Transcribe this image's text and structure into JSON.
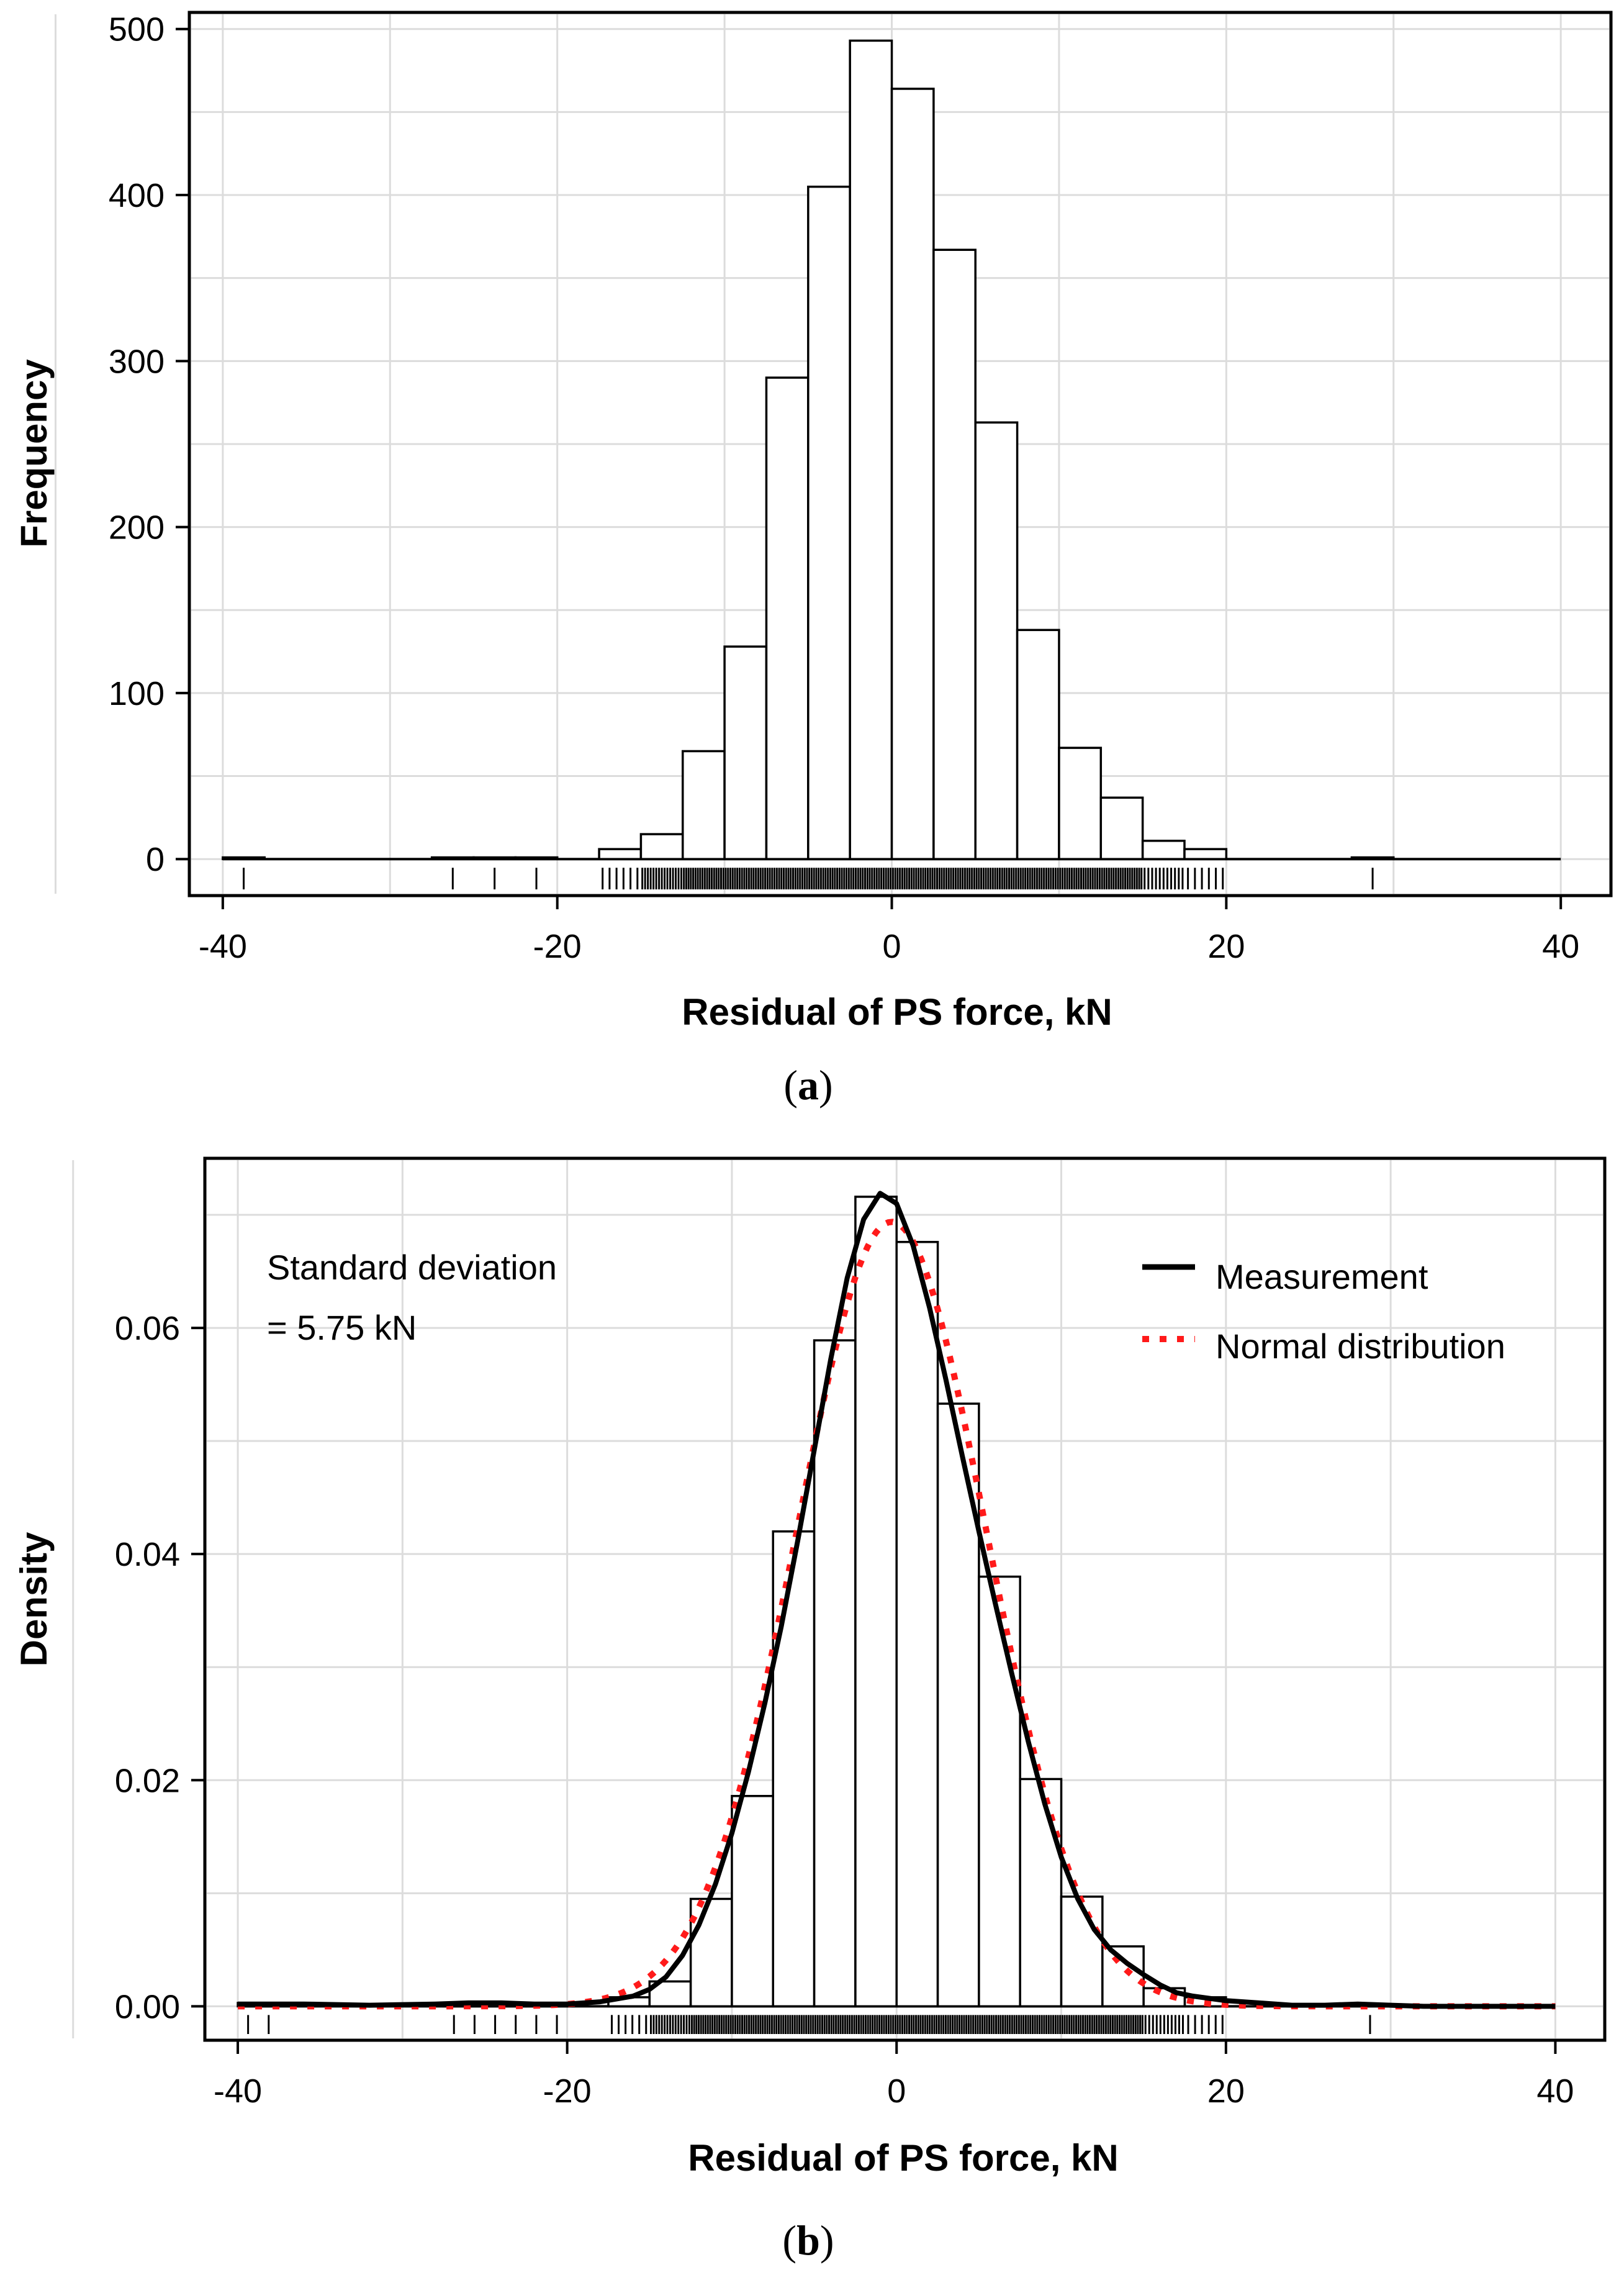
{
  "colors": {
    "bar_fill": "#ffffff",
    "bar_stroke": "#000000",
    "grid": "#dcdcdc",
    "measurement": "#000000",
    "normal": "#ff1a1a"
  },
  "panels": [
    {
      "caption": {
        "open": "(",
        "letter": "a",
        "close": ")"
      },
      "chart_data": {
        "type": "bar",
        "title": "",
        "xlabel": "Residual of PS force, kN",
        "ylabel": "Frequency",
        "xlim": [
          -42,
          43
        ],
        "ylim": [
          -22,
          510
        ],
        "xticks": [
          -40,
          -20,
          0,
          20,
          40
        ],
        "xtick_labels": [
          "-40",
          "-20",
          "0",
          "20",
          "40"
        ],
        "yticks": [
          0,
          100,
          200,
          300,
          400,
          500
        ],
        "ytick_labels": [
          "0",
          "100",
          "200",
          "300",
          "400",
          "500"
        ],
        "bin_width": 2.5,
        "bins": [
          {
            "x0": -40,
            "count": 1
          },
          {
            "x0": -27.5,
            "count": 1
          },
          {
            "x0": -25,
            "count": 1
          },
          {
            "x0": -22.5,
            "count": 1
          },
          {
            "x0": -17.5,
            "count": 6
          },
          {
            "x0": -15,
            "count": 15
          },
          {
            "x0": -12.5,
            "count": 65
          },
          {
            "x0": -10,
            "count": 128
          },
          {
            "x0": -7.5,
            "count": 290
          },
          {
            "x0": -5,
            "count": 405
          },
          {
            "x0": -2.5,
            "count": 493
          },
          {
            "x0": 0,
            "count": 464
          },
          {
            "x0": 2.5,
            "count": 367
          },
          {
            "x0": 5,
            "count": 263
          },
          {
            "x0": 7.5,
            "count": 138
          },
          {
            "x0": 10,
            "count": 67
          },
          {
            "x0": 12.5,
            "count": 37
          },
          {
            "x0": 15,
            "count": 11
          },
          {
            "x0": 17.5,
            "count": 6
          },
          {
            "x0": 27.5,
            "count": 1
          }
        ],
        "baseline_range": [
          -40,
          40
        ]
      }
    },
    {
      "caption": {
        "open": "(",
        "letter": "b",
        "close": ")"
      },
      "annotation": [
        "Standard deviation",
        "= 5.75 kN"
      ],
      "legend": {
        "position": "top-right",
        "entries": [
          {
            "label": "Measurement",
            "style": "solid"
          },
          {
            "label": "Normal distribution",
            "style": "dotted"
          }
        ]
      },
      "chart_data": {
        "type": "bar",
        "title": "",
        "xlabel": "Residual of PS force, kN",
        "ylabel": "Density",
        "xlim": [
          -42,
          43
        ],
        "ylim": [
          -0.003,
          0.075
        ],
        "xticks": [
          -40,
          -20,
          0,
          20,
          40
        ],
        "xtick_labels": [
          "-40",
          "-20",
          "0",
          "20",
          "40"
        ],
        "yticks": [
          0,
          0.02,
          0.04,
          0.06
        ],
        "ytick_labels": [
          "0.00",
          "0.02",
          "0.04",
          "0.06"
        ],
        "bin_width": 2.5,
        "bins": [
          {
            "x0": -40,
            "density": 0.0003
          },
          {
            "x0": -27.5,
            "density": 0.0003
          },
          {
            "x0": -25,
            "density": 0.0003
          },
          {
            "x0": -22.5,
            "density": 0.0003
          },
          {
            "x0": -17.5,
            "density": 0.0008
          },
          {
            "x0": -15,
            "density": 0.0022
          },
          {
            "x0": -12.5,
            "density": 0.0095
          },
          {
            "x0": -10,
            "density": 0.0186
          },
          {
            "x0": -7.5,
            "density": 0.042
          },
          {
            "x0": -5,
            "density": 0.0589
          },
          {
            "x0": -2.5,
            "density": 0.0716
          },
          {
            "x0": 0,
            "density": 0.0676
          },
          {
            "x0": 2.5,
            "density": 0.0533
          },
          {
            "x0": 5,
            "density": 0.038
          },
          {
            "x0": 7.5,
            "density": 0.0201
          },
          {
            "x0": 10,
            "density": 0.0097
          },
          {
            "x0": 12.5,
            "density": 0.0053
          },
          {
            "x0": 15,
            "density": 0.0016
          },
          {
            "x0": 17.5,
            "density": 0.0008
          },
          {
            "x0": 27.5,
            "density": 0.0002
          }
        ],
        "baseline_range": [
          -40,
          40
        ],
        "series": [
          {
            "name": "Measurement",
            "x": [
              -40,
              -36,
              -32,
              -28,
              -26,
              -24,
              -22,
              -20,
              -18,
              -16,
              -15,
              -14,
              -13,
              -12,
              -11,
              -10,
              -9,
              -8,
              -7,
              -6,
              -5,
              -4,
              -3,
              -2,
              -1,
              0,
              1,
              2,
              3,
              4,
              5,
              6,
              7,
              8,
              9,
              10,
              11,
              12,
              13,
              14,
              15,
              16,
              17,
              18,
              19,
              20,
              22,
              24,
              26,
              28,
              30,
              32,
              36,
              40
            ],
            "y": [
              0.0002,
              0.0002,
              0.0001,
              0.0002,
              0.0003,
              0.0003,
              0.0002,
              0.0002,
              0.0004,
              0.0009,
              0.0015,
              0.0026,
              0.0045,
              0.0072,
              0.0108,
              0.0153,
              0.0207,
              0.0268,
              0.0336,
              0.0412,
              0.0492,
              0.0572,
              0.0644,
              0.0696,
              0.0719,
              0.071,
              0.0673,
              0.0618,
              0.0554,
              0.0486,
              0.042,
              0.0356,
              0.0294,
              0.0234,
              0.0179,
              0.0132,
              0.0095,
              0.0068,
              0.005,
              0.0038,
              0.0028,
              0.0019,
              0.0012,
              0.0009,
              0.0007,
              0.0005,
              0.0003,
              0.0001,
              0.0001,
              0.0002,
              0.0001,
              0.0,
              0.0,
              0.0
            ]
          },
          {
            "name": "Normal distribution",
            "mean": -0.3,
            "sd": 5.75,
            "x_range": [
              -40,
              40
            ]
          }
        ]
      }
    }
  ]
}
